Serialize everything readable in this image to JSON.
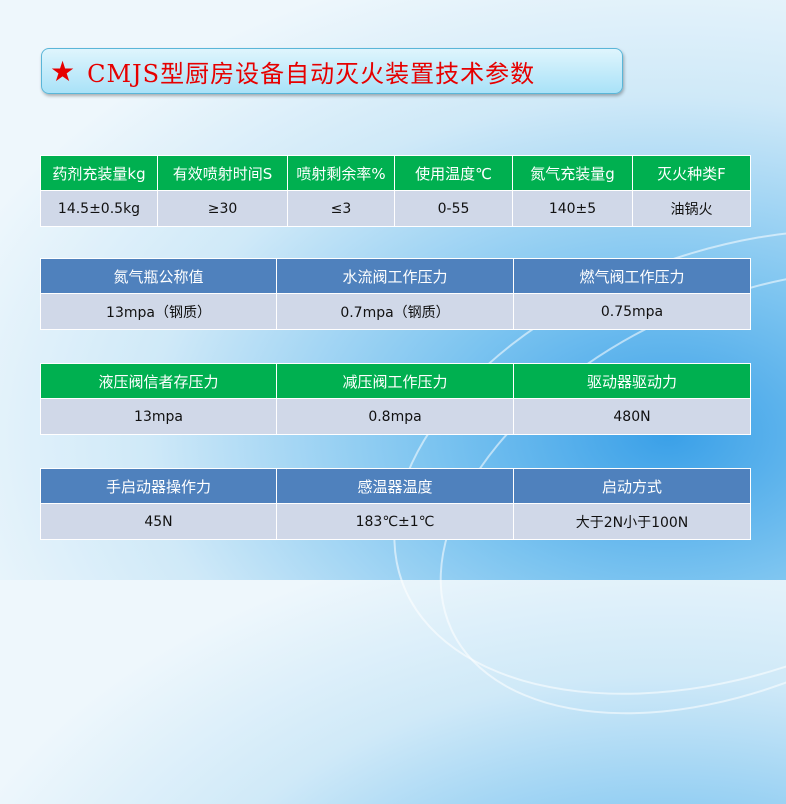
{
  "title": {
    "star": "★",
    "text": "CMJS型厨房设备自动灭火装置技术参数"
  },
  "colors": {
    "green_header": "#00b050",
    "blue_header": "#4f81bd",
    "data_row": "#d0d8e8",
    "title_text": "#e60000"
  },
  "tables": [
    {
      "headers": [
        "药剂充装量kg",
        "有效喷射时间S",
        "喷射剩余率%",
        "使用温度℃",
        "氮气充装量g",
        "灭火种类F"
      ],
      "values": [
        "14.5±0.5kg",
        "≥30",
        "≤3",
        "0-55",
        "140±5",
        "油锅火"
      ]
    },
    {
      "headers": [
        "氮气瓶公称值",
        "水流阀工作压力",
        "燃气阀工作压力"
      ],
      "values": [
        "13mpa（钢质）",
        "0.7mpa（钢质）",
        "0.75mpa"
      ]
    },
    {
      "headers": [
        "液压阀信者存压力",
        "减压阀工作压力",
        "驱动器驱动力"
      ],
      "values": [
        "13mpa",
        "0.8mpa",
        "480N"
      ]
    },
    {
      "headers": [
        "手启动器操作力",
        "感温器温度",
        "启动方式"
      ],
      "values": [
        "45N",
        "183℃±1℃",
        "大于2N小于100N"
      ]
    }
  ]
}
